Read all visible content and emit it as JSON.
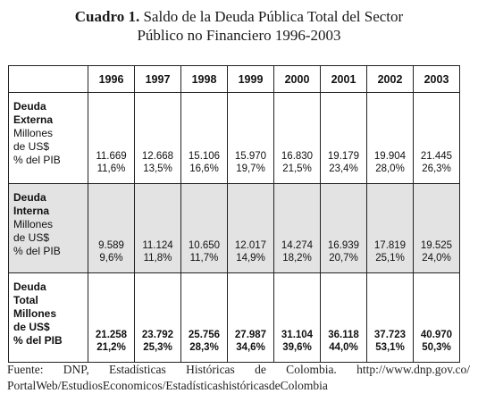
{
  "title": {
    "label": "Cuadro 1.",
    "line1": "Saldo de la Deuda Pública Total del Sector",
    "line2": "Público no Financiero 1996-2003"
  },
  "table": {
    "years": [
      "1996",
      "1997",
      "1998",
      "1999",
      "2000",
      "2001",
      "2002",
      "2003"
    ],
    "rows": [
      {
        "label_bold": [
          "Deuda",
          "Externa"
        ],
        "label_normal": [
          "Millones",
          "de US$",
          "% del PIB"
        ],
        "millones": [
          "11.669",
          "12.668",
          "15.106",
          "15.970",
          "16.830",
          "19.179",
          "19.904",
          "21.445"
        ],
        "pct": [
          "11,6%",
          "13,5%",
          "16,6%",
          "19,7%",
          "21,5%",
          "23,4%",
          "28,0%",
          "26,3%"
        ]
      },
      {
        "label_bold": [
          "Deuda",
          "Interna"
        ],
        "label_normal": [
          "Millones",
          "de US$",
          "% del PIB"
        ],
        "millones": [
          "9.589",
          "11.124",
          "10.650",
          "12.017",
          "14.274",
          "16.939",
          "17.819",
          "19.525"
        ],
        "pct": [
          "9,6%",
          "11,8%",
          "11,7%",
          "14,9%",
          "18,2%",
          "20,7%",
          "25,1%",
          "24,0%"
        ]
      },
      {
        "label_bold": [
          "Deuda",
          "Total",
          "Millones",
          "de US$",
          "% del PIB"
        ],
        "label_normal": [],
        "millones": [
          "21.258",
          "23.792",
          "25.756",
          "27.987",
          "31.104",
          "36.118",
          "37.723",
          "40.970"
        ],
        "pct": [
          "21,2%",
          "25,3%",
          "28,3%",
          "34,6%",
          "39,6%",
          "44,0%",
          "53,1%",
          "50,3%"
        ]
      }
    ]
  },
  "source": {
    "line1": "Fuente: DNP, Estadísticas Históricas de Colombia. http://www.dnp.gov.co/",
    "line2": "PortalWeb/EstudiosEconomicos/EstadísticashistóricasdeColombia"
  }
}
